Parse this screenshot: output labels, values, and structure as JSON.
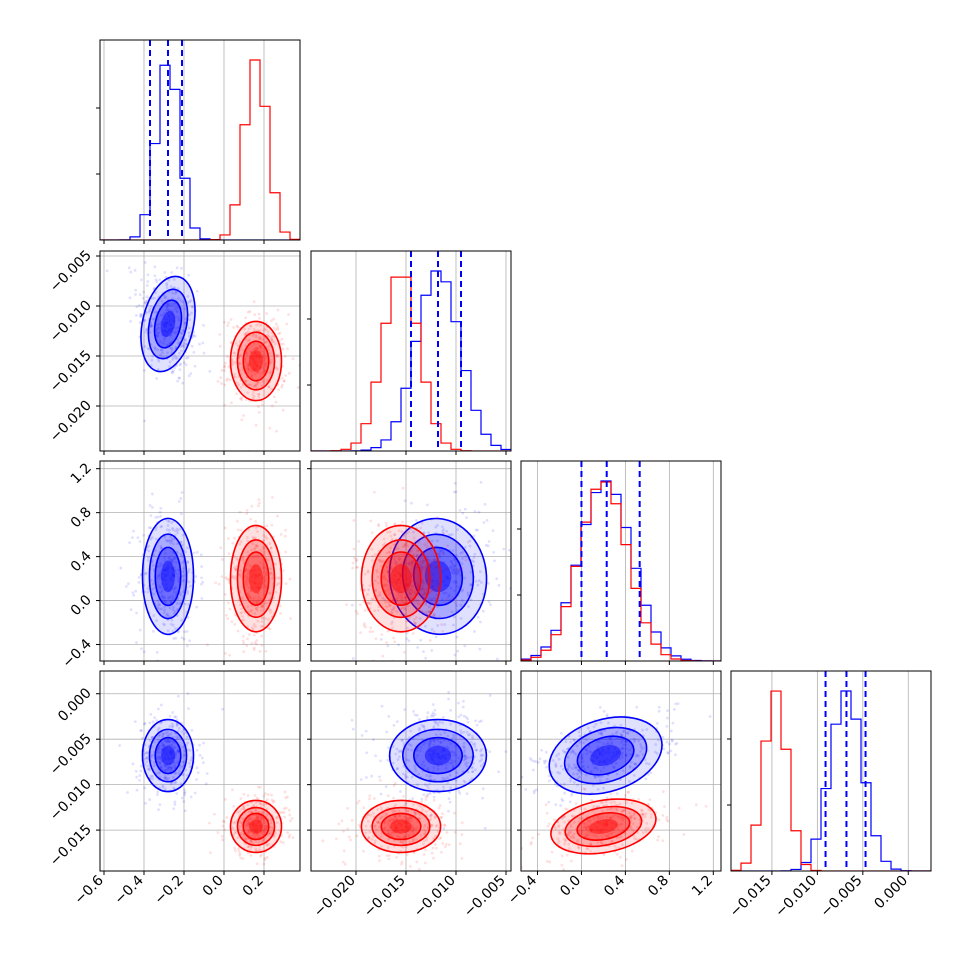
{
  "chart_data": {
    "type": "corner",
    "grid": true,
    "dimensions": 4,
    "ranges": [
      [
        -0.62,
        0.38
      ],
      [
        -0.0245,
        -0.0045
      ],
      [
        -0.55,
        1.27
      ],
      [
        -0.0195,
        0.0025
      ]
    ],
    "ticks": [
      {
        "values": [
          -0.6,
          -0.4,
          -0.2,
          0.0,
          0.2
        ],
        "labels": [
          "−0.6",
          "−0.4",
          "−0.2",
          "0.0",
          "0.2"
        ]
      },
      {
        "values": [
          -0.02,
          -0.015,
          -0.01,
          -0.005
        ],
        "labels": [
          "−0.020",
          "−0.015",
          "−0.010",
          "−0.005"
        ]
      },
      {
        "values": [
          -0.4,
          0.0,
          0.4,
          0.8,
          1.2
        ],
        "labels": [
          "−0.4",
          "0.0",
          "0.4",
          "0.8",
          "1.2"
        ]
      },
      {
        "values": [
          -0.015,
          -0.01,
          -0.005,
          0.0
        ],
        "labels": [
          "−0.015",
          "−0.010",
          "−0.005",
          "0.000"
        ]
      }
    ],
    "series": [
      {
        "color": "#0000ff",
        "mean": [
          -0.28,
          -0.0118,
          0.22,
          -0.0068
        ],
        "std": [
          0.058,
          0.0022,
          0.24,
          0.0018
        ],
        "corr": [
          [
            1,
            -0.35,
            0,
            0
          ],
          [
            -0.35,
            1,
            0.2,
            0
          ],
          [
            0,
            0.2,
            1,
            0.5
          ],
          [
            0,
            0,
            0.5,
            1
          ]
        ],
        "quantiles": [
          [
            -0.37,
            -0.28,
            -0.21
          ],
          [
            -0.0145,
            -0.0118,
            -0.0095
          ],
          [
            0.0,
            0.23,
            0.53
          ],
          [
            -0.0091,
            -0.0068,
            -0.0047
          ]
        ]
      },
      {
        "color": "#ff0000",
        "mean": [
          0.16,
          -0.0155,
          0.2,
          -0.0146
        ],
        "std": [
          0.058,
          0.0018,
          0.22,
          0.0013
        ],
        "corr": [
          [
            1,
            0,
            0,
            0
          ],
          [
            0,
            1,
            0,
            0
          ],
          [
            0,
            0,
            1,
            0.3
          ],
          [
            0,
            0,
            0.3,
            1
          ]
        ]
      }
    ]
  }
}
